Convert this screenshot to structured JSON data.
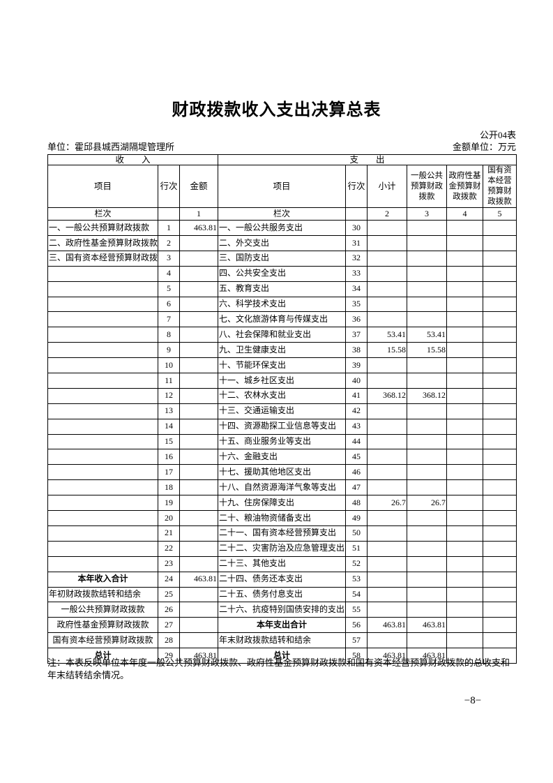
{
  "page": {
    "title": "财政拨款收入支出决算总表",
    "table_code": "公开04表",
    "unit": "单位：霍邱县城西湖隔堤管理所",
    "amount_unit": "金额单位：万元",
    "note": "注：本表反映单位本年度一般公共预算财政拨款、政府性基金预算财政拨款和国有资本经营预算财政拨款的总收支和年末结转结余情况。",
    "page_number": "−8−"
  },
  "table": {
    "banners": {
      "revenue": "收　　入",
      "expense": "支　　出"
    },
    "headers": {
      "item": "项目",
      "row_no": "行次",
      "amount": "金额",
      "subtotal": "小计",
      "general_public": "一般公共预算财政拨款",
      "govt_fund": "政府性基金预算财政拨款",
      "state_capital": "国有资本经营预算财政拨款",
      "col_label": "栏次",
      "col_indices": [
        "1",
        "2",
        "3",
        "4",
        "5"
      ]
    },
    "rows": [
      {
        "rev_item": "一、一般公共预算财政拨款",
        "rev_no": "1",
        "rev_amt": "463.81",
        "exp_item": "一、一般公共服务支出",
        "exp_no": "30"
      },
      {
        "rev_item": "二、政府性基金预算财政拨款",
        "rev_no": "2",
        "exp_item": "二、外交支出",
        "exp_no": "31"
      },
      {
        "rev_item": "三、国有资本经营预算财政拨款",
        "rev_no": "3",
        "exp_item": "三、国防支出",
        "exp_no": "32"
      },
      {
        "rev_no": "4",
        "exp_item": "四、公共安全支出",
        "exp_no": "33"
      },
      {
        "rev_no": "5",
        "exp_item": "五、教育支出",
        "exp_no": "34"
      },
      {
        "rev_no": "6",
        "exp_item": "六、科学技术支出",
        "exp_no": "35"
      },
      {
        "rev_no": "7",
        "exp_item": "七、文化旅游体育与传媒支出",
        "exp_no": "36"
      },
      {
        "rev_no": "8",
        "exp_item": "八、社会保障和就业支出",
        "exp_no": "37",
        "exp_sub": "53.41",
        "exp_gen": "53.41"
      },
      {
        "rev_no": "9",
        "exp_item": "九、卫生健康支出",
        "exp_no": "38",
        "exp_sub": "15.58",
        "exp_gen": "15.58"
      },
      {
        "rev_no": "10",
        "exp_item": "十、节能环保支出",
        "exp_no": "39"
      },
      {
        "rev_no": "11",
        "exp_item": "十一、城乡社区支出",
        "exp_no": "40"
      },
      {
        "rev_no": "12",
        "exp_item": "十二、农林水支出",
        "exp_no": "41",
        "exp_sub": "368.12",
        "exp_gen": "368.12"
      },
      {
        "rev_no": "13",
        "exp_item": "十三、交通运输支出",
        "exp_no": "42"
      },
      {
        "rev_no": "14",
        "exp_item": "十四、资源勘探工业信息等支出",
        "exp_no": "43"
      },
      {
        "rev_no": "15",
        "exp_item": "十五、商业服务业等支出",
        "exp_no": "44"
      },
      {
        "rev_no": "16",
        "exp_item": "十六、金融支出",
        "exp_no": "45"
      },
      {
        "rev_no": "17",
        "exp_item": "十七、援助其他地区支出",
        "exp_no": "46"
      },
      {
        "rev_no": "18",
        "exp_item": "十八、自然资源海洋气象等支出",
        "exp_no": "47"
      },
      {
        "rev_no": "19",
        "exp_item": "十九、住房保障支出",
        "exp_no": "48",
        "exp_sub": "26.7",
        "exp_gen": "26.7"
      },
      {
        "rev_no": "20",
        "exp_item": "二十、粮油物资储备支出",
        "exp_no": "49"
      },
      {
        "rev_no": "21",
        "exp_item": "二十一、国有资本经营预算支出",
        "exp_no": "50"
      },
      {
        "rev_no": "22",
        "exp_item": "二十二、灾害防治及应急管理支出",
        "exp_no": "51"
      },
      {
        "rev_no": "23",
        "exp_item": "二十三、其他支出",
        "exp_no": "52"
      },
      {
        "rev_item": "本年收入合计",
        "rev_center": true,
        "rev_bold": true,
        "rev_no": "24",
        "rev_amt": "463.81",
        "exp_item": "二十四、债务还本支出",
        "exp_no": "53"
      },
      {
        "rev_item": "年初财政拨款结转和结余",
        "rev_no": "25",
        "exp_item": "二十五、债务付息支出",
        "exp_no": "54"
      },
      {
        "rev_item": "一般公共预算财政拨款",
        "rev_center": true,
        "rev_no": "26",
        "exp_item": "二十六、抗疫特别国债安排的支出",
        "exp_no": "55"
      },
      {
        "rev_item": "政府性基金预算财政拨款",
        "rev_center": true,
        "rev_no": "27",
        "exp_item": "本年支出合计",
        "exp_center": true,
        "exp_bold": true,
        "exp_no": "56",
        "exp_sub": "463.81",
        "exp_gen": "463.81"
      },
      {
        "rev_item": "国有资本经营预算财政拨款",
        "rev_center": true,
        "rev_no": "28",
        "exp_item": "年末财政拨款结转和结余",
        "exp_no": "57"
      },
      {
        "rev_item": "总计",
        "rev_center": true,
        "rev_bold": true,
        "rev_no": "29",
        "rev_amt": "463.81",
        "exp_item": "总计",
        "exp_center": true,
        "exp_bold": true,
        "exp_no": "58",
        "exp_sub": "463.81",
        "exp_gen": "463.81"
      }
    ]
  }
}
